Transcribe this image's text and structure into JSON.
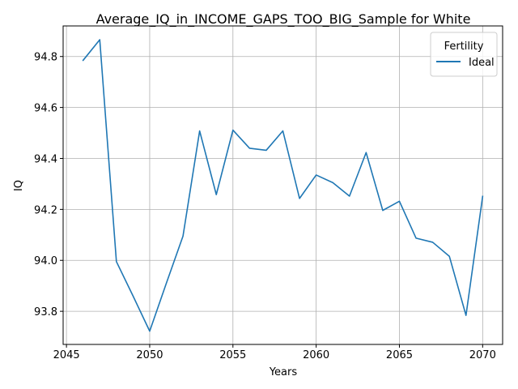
{
  "chart_data": {
    "type": "line",
    "title": "Average_IQ_in_INCOME_GAPS_TOO_BIG_Sample for White",
    "xlabel": "Years",
    "ylabel": "IQ",
    "xlim": [
      2044.8,
      2071.2
    ],
    "ylim": [
      93.67,
      94.92
    ],
    "xticks": [
      2045,
      2050,
      2055,
      2060,
      2065,
      2070
    ],
    "yticks": [
      93.8,
      94.0,
      94.2,
      94.4,
      94.6,
      94.8
    ],
    "xtick_labels": [
      "2045",
      "2050",
      "2055",
      "2060",
      "2065",
      "2070"
    ],
    "ytick_labels": [
      "93.8",
      "94.0",
      "94.2",
      "94.4",
      "94.6",
      "94.8"
    ],
    "grid": true,
    "legend": {
      "title": "Fertility",
      "placement": "top-right"
    },
    "series": [
      {
        "name": "Ideal",
        "color": "#1f77b4",
        "x": [
          2046,
          2047,
          2048,
          2049,
          2050,
          2051,
          2052,
          2053,
          2054,
          2055,
          2056,
          2057,
          2058,
          2059,
          2060,
          2061,
          2062,
          2063,
          2064,
          2065,
          2066,
          2067,
          2068,
          2069,
          2070
        ],
        "y": [
          94.785,
          94.866,
          93.995,
          93.86,
          93.722,
          93.91,
          94.095,
          94.508,
          94.258,
          94.511,
          94.44,
          94.432,
          94.508,
          94.243,
          94.335,
          94.305,
          94.252,
          94.423,
          94.196,
          94.232,
          94.087,
          94.071,
          94.016,
          93.784,
          94.251
        ]
      }
    ]
  }
}
